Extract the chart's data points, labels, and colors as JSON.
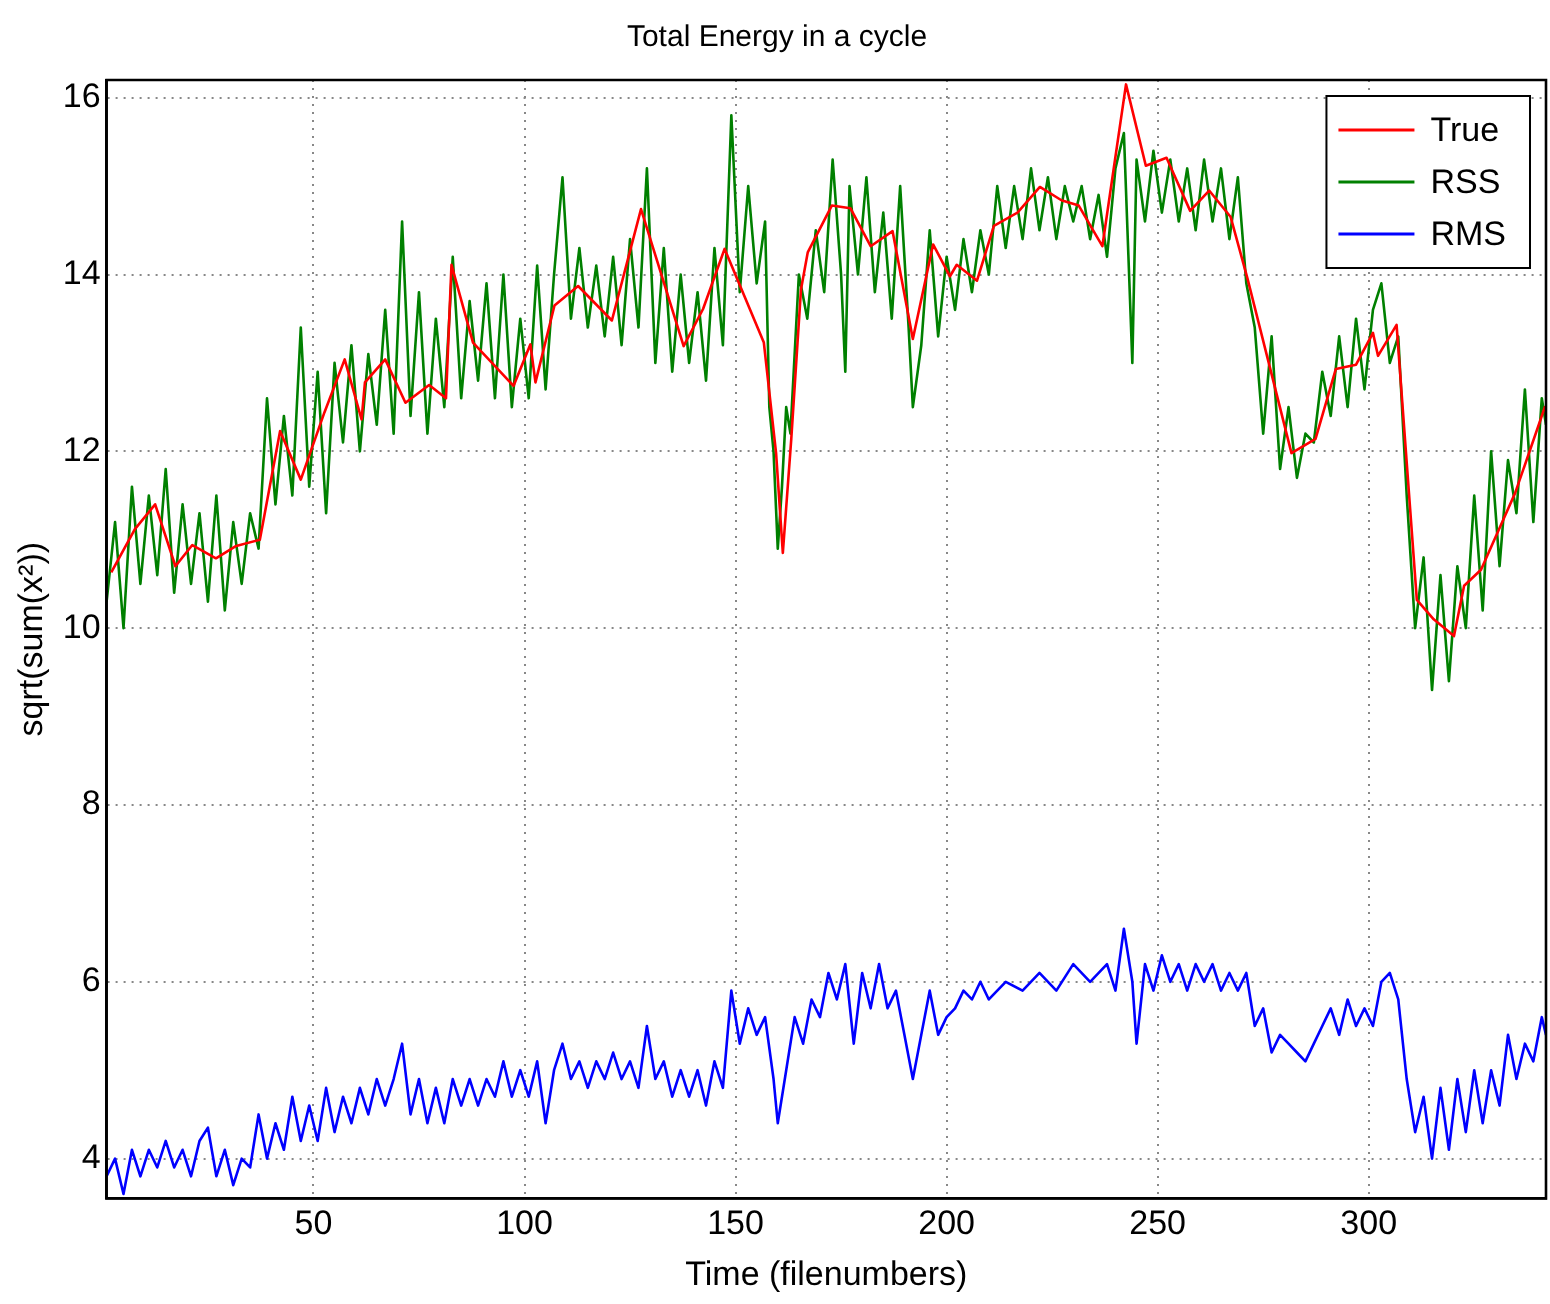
{
  "chart_data": {
    "type": "line",
    "title": "Total Energy in a cycle",
    "xlabel": "Time (filenumbers)",
    "ylabel": "sqrt(sum(x²))",
    "xlim": [
      1,
      342
    ],
    "xticks": [
      50,
      100,
      150,
      200,
      250,
      300
    ],
    "ylim": [
      3.55,
      16.2
    ],
    "yticks": [
      4,
      6,
      8,
      10,
      12,
      14,
      16
    ],
    "grid": true,
    "legend": "top right",
    "marker": "none",
    "line_style": "solid",
    "series": [
      {
        "name": "True",
        "color": "#ff0000",
        "x": [
          2.1,
          7.7,
          12.5,
          17.3,
          21.3,
          26.9,
          31.7,
          37.3,
          42.1,
          47.0,
          52.6,
          57.4,
          61.4,
          62.2,
          67.0,
          71.8,
          77.4,
          81.4,
          82.7,
          87.8,
          97.4,
          101.4,
          102.6,
          107.1,
          112.7,
          120.7,
          127.6,
          137.7,
          142.3,
          147.4,
          156.7,
          159.6,
          161.2,
          163.2,
          165.5,
          167.1,
          172.8,
          177.2,
          182.0,
          187.2,
          192.0,
          196.8,
          200.8,
          202.4,
          207.2,
          211.2,
          216.8,
          222.1,
          227.2,
          231.3,
          236.9,
          242.5,
          247.2,
          252.1,
          257.7,
          262.2,
          267.3,
          271.3,
          276.9,
          281.7,
          287.4,
          292.2,
          297.0,
          301.0,
          302.2,
          306.6,
          311.4,
          315.4,
          320.2,
          322.6,
          326.6,
          334.7,
          341.8
        ],
        "values": [
          10.63,
          11.12,
          11.4,
          10.7,
          10.94,
          10.79,
          10.93,
          11.0,
          12.23,
          11.68,
          12.44,
          13.04,
          12.36,
          12.78,
          13.04,
          12.55,
          12.75,
          12.6,
          14.11,
          13.23,
          12.74,
          13.21,
          12.78,
          13.65,
          13.87,
          13.48,
          14.74,
          13.19,
          13.61,
          14.29,
          13.23,
          11.98,
          10.85,
          12.14,
          13.83,
          14.25,
          14.78,
          14.75,
          14.32,
          14.49,
          13.27,
          14.34,
          13.98,
          14.11,
          13.93,
          14.55,
          14.7,
          14.99,
          14.84,
          14.78,
          14.32,
          16.15,
          15.23,
          15.32,
          14.72,
          14.95,
          14.65,
          13.95,
          12.89,
          11.98,
          12.14,
          12.93,
          12.98,
          13.34,
          13.08,
          13.43,
          10.32,
          10.1,
          9.91,
          10.48,
          10.66,
          11.53,
          12.51
        ]
      },
      {
        "name": "RSS",
        "color": "#008000",
        "x": [
          1,
          3,
          5,
          7,
          9,
          11,
          13,
          15,
          17,
          19,
          21,
          23,
          25,
          27,
          29,
          31,
          33,
          35,
          37,
          39,
          41,
          43,
          45,
          47,
          49,
          51,
          53,
          55,
          57,
          59,
          61,
          63,
          65,
          67,
          69,
          71,
          73,
          75,
          77,
          79,
          81,
          83,
          85,
          87,
          89,
          91,
          93,
          95,
          97,
          99,
          101,
          103,
          105,
          107,
          109,
          111,
          113,
          115,
          117,
          119,
          121,
          123,
          125,
          127,
          129,
          131,
          133,
          135,
          137,
          139,
          141,
          143,
          145,
          147,
          149,
          151,
          153,
          155,
          157,
          158,
          159,
          160,
          161,
          162,
          163,
          165,
          167,
          169,
          171,
          173,
          175,
          176,
          177,
          179,
          181,
          183,
          185,
          187,
          189,
          191,
          192,
          194,
          196,
          198,
          200,
          202,
          204,
          206,
          208,
          210,
          212,
          214,
          216,
          218,
          220,
          222,
          224,
          226,
          228,
          230,
          232,
          234,
          236,
          238,
          240,
          242,
          244,
          245,
          247,
          249,
          251,
          253,
          255,
          257,
          259,
          261,
          263,
          265,
          267,
          269,
          271,
          273,
          275,
          277,
          279,
          281,
          283,
          285,
          287,
          289,
          291,
          293,
          295,
          297,
          299,
          301,
          303,
          305,
          307,
          309,
          311,
          313,
          315,
          317,
          319,
          321,
          323,
          325,
          327,
          329,
          331,
          333,
          335,
          337,
          339,
          341,
          342
        ],
        "values": [
          10.3,
          11.2,
          10.0,
          11.6,
          10.5,
          11.5,
          10.6,
          11.8,
          10.4,
          11.4,
          10.5,
          11.3,
          10.3,
          11.5,
          10.2,
          11.2,
          10.5,
          11.3,
          10.9,
          12.6,
          11.4,
          12.4,
          11.5,
          13.4,
          11.6,
          12.9,
          11.3,
          13.0,
          12.1,
          13.2,
          12.0,
          13.1,
          12.3,
          13.6,
          12.2,
          14.6,
          12.4,
          13.8,
          12.2,
          13.5,
          12.5,
          14.2,
          12.6,
          13.7,
          12.8,
          13.9,
          12.6,
          14.0,
          12.5,
          13.5,
          12.6,
          14.1,
          12.7,
          14.0,
          15.1,
          13.5,
          14.3,
          13.4,
          14.1,
          13.3,
          14.2,
          13.2,
          14.4,
          13.4,
          15.2,
          13.0,
          14.3,
          12.9,
          14.0,
          13.0,
          13.8,
          12.8,
          14.3,
          13.2,
          15.8,
          13.8,
          15.0,
          13.9,
          14.6,
          12.5,
          12.0,
          10.9,
          11.6,
          12.5,
          12.2,
          14.0,
          13.5,
          14.5,
          13.8,
          15.3,
          14.0,
          12.9,
          15.0,
          14.0,
          15.1,
          13.8,
          14.7,
          13.5,
          15.0,
          13.4,
          12.5,
          13.2,
          14.5,
          13.3,
          14.2,
          13.6,
          14.4,
          13.8,
          14.5,
          14.0,
          15.0,
          14.3,
          15.0,
          14.4,
          15.2,
          14.5,
          15.1,
          14.4,
          15.0,
          14.6,
          15.0,
          14.4,
          14.9,
          14.2,
          15.2,
          15.6,
          13.0,
          15.3,
          14.6,
          15.4,
          14.7,
          15.3,
          14.6,
          15.2,
          14.5,
          15.3,
          14.6,
          15.2,
          14.4,
          15.1,
          13.9,
          13.4,
          12.2,
          13.3,
          11.8,
          12.5,
          11.7,
          12.2,
          12.1,
          12.9,
          12.4,
          13.3,
          12.5,
          13.5,
          12.7,
          13.6,
          13.9,
          13.0,
          13.3,
          11.5,
          10.0,
          10.8,
          9.3,
          10.6,
          9.4,
          10.7,
          10.0,
          11.5,
          10.2,
          12.0,
          10.7,
          11.9,
          11.3,
          12.7,
          11.2,
          12.6,
          12.3
        ]
      },
      {
        "name": "RMS",
        "color": "#0000ff",
        "x": [
          1,
          3,
          5,
          7,
          9,
          11,
          13,
          15,
          17,
          19,
          21,
          23,
          25,
          27,
          29,
          31,
          33,
          35,
          37,
          39,
          41,
          43,
          45,
          47,
          49,
          51,
          53,
          55,
          57,
          59,
          61,
          63,
          65,
          67,
          69,
          71,
          73,
          75,
          77,
          79,
          81,
          83,
          85,
          87,
          89,
          91,
          93,
          95,
          97,
          99,
          101,
          103,
          105,
          107,
          109,
          111,
          113,
          115,
          117,
          119,
          121,
          123,
          125,
          127,
          129,
          131,
          133,
          135,
          137,
          139,
          141,
          143,
          145,
          147,
          149,
          151,
          153,
          155,
          157,
          159,
          160,
          162,
          164,
          166,
          168,
          170,
          172,
          174,
          176,
          178,
          180,
          182,
          184,
          186,
          188,
          190,
          192,
          194,
          196,
          198,
          200,
          202,
          204,
          206,
          208,
          210,
          214,
          218,
          222,
          226,
          230,
          234,
          238,
          240,
          242,
          244,
          245,
          247,
          249,
          251,
          253,
          255,
          257,
          259,
          261,
          263,
          265,
          267,
          269,
          271,
          273,
          275,
          277,
          279,
          281,
          283,
          285,
          287,
          289,
          291,
          293,
          295,
          297,
          299,
          301,
          303,
          305,
          307,
          309,
          311,
          313,
          315,
          317,
          319,
          321,
          323,
          325,
          327,
          329,
          331,
          333,
          335,
          337,
          339,
          341,
          342
        ],
        "values": [
          3.8,
          4.0,
          3.6,
          4.1,
          3.8,
          4.1,
          3.9,
          4.2,
          3.9,
          4.1,
          3.8,
          4.2,
          4.35,
          3.8,
          4.1,
          3.7,
          4.0,
          3.9,
          4.5,
          4.0,
          4.4,
          4.1,
          4.7,
          4.2,
          4.6,
          4.2,
          4.8,
          4.3,
          4.7,
          4.4,
          4.8,
          4.5,
          4.9,
          4.6,
          4.9,
          5.3,
          4.5,
          4.9,
          4.4,
          4.8,
          4.4,
          4.9,
          4.6,
          4.9,
          4.6,
          4.9,
          4.7,
          5.1,
          4.7,
          5.0,
          4.7,
          5.1,
          4.4,
          5.0,
          5.3,
          4.9,
          5.1,
          4.8,
          5.1,
          4.9,
          5.2,
          4.9,
          5.1,
          4.8,
          5.5,
          4.9,
          5.1,
          4.7,
          5.0,
          4.7,
          5.0,
          4.6,
          5.1,
          4.8,
          5.9,
          5.3,
          5.7,
          5.4,
          5.6,
          4.9,
          4.4,
          5.0,
          5.6,
          5.3,
          5.8,
          5.6,
          6.1,
          5.8,
          6.2,
          5.3,
          6.1,
          5.7,
          6.2,
          5.7,
          5.9,
          5.4,
          4.9,
          5.4,
          5.9,
          5.4,
          5.6,
          5.7,
          5.9,
          5.8,
          6.0,
          5.8,
          6.0,
          5.9,
          6.1,
          5.9,
          6.2,
          6.0,
          6.2,
          5.9,
          6.6,
          6.0,
          5.3,
          6.2,
          5.9,
          6.3,
          6.0,
          6.2,
          5.9,
          6.2,
          6.0,
          6.2,
          5.9,
          6.1,
          5.9,
          6.1,
          5.5,
          5.7,
          5.2,
          5.4,
          5.3,
          5.2,
          5.1,
          5.3,
          5.5,
          5.7,
          5.4,
          5.8,
          5.5,
          5.7,
          5.5,
          6.0,
          6.1,
          5.8,
          4.9,
          4.3,
          4.7,
          4.0,
          4.8,
          4.1,
          4.9,
          4.3,
          5.0,
          4.4,
          5.0,
          4.6,
          5.4,
          4.9,
          5.3,
          5.1,
          5.6,
          5.4
        ]
      }
    ]
  }
}
